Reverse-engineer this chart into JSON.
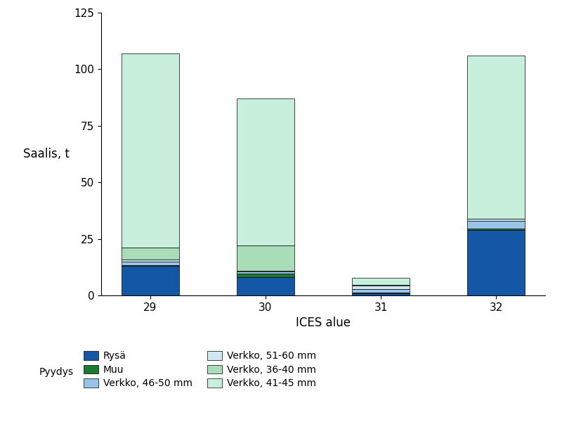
{
  "categories": [
    "29",
    "30",
    "31",
    "32"
  ],
  "series": {
    "Rysä": [
      13,
      8,
      1,
      29
    ],
    "Muu": [
      0.5,
      1.5,
      0.3,
      0.5
    ],
    "Verkko, 46-50 mm": [
      1.5,
      1.0,
      1.5,
      3.5
    ],
    "Verkko, 51-60 mm": [
      1.0,
      0.5,
      1.5,
      1.0
    ],
    "Verkko, 36-40 mm": [
      5,
      11,
      0.5,
      0
    ],
    "Verkko, 41-45 mm": [
      86,
      65,
      3,
      72
    ]
  },
  "colors": {
    "Rysä": "#1357a6",
    "Muu": "#1a7a32",
    "Verkko, 46-50 mm": "#99c4e8",
    "Verkko, 51-60 mm": "#d0e8f5",
    "Verkko, 36-40 mm": "#a8ddb8",
    "Verkko, 41-45 mm": "#c8eedc"
  },
  "stack_order": [
    "Rysä",
    "Muu",
    "Verkko, 46-50 mm",
    "Verkko, 51-60 mm",
    "Verkko, 36-40 mm",
    "Verkko, 41-45 mm"
  ],
  "xlabel": "ICES alue",
  "ylabel": "Saalis, t",
  "ylim": [
    0,
    125
  ],
  "yticks": [
    0,
    25,
    50,
    75,
    100,
    125
  ],
  "legend_title": "Pyydys",
  "axis_fontsize": 12,
  "tick_fontsize": 11,
  "legend_fontsize": 10,
  "bar_width": 0.5,
  "background_color": "#ffffff",
  "legend_col1": [
    "Rysä",
    "Verkko, 46-50 mm",
    "Verkko, 36-40 mm"
  ],
  "legend_col2": [
    "Muu",
    "Verkko, 51-60 mm",
    "Verkko, 41-45 mm"
  ]
}
